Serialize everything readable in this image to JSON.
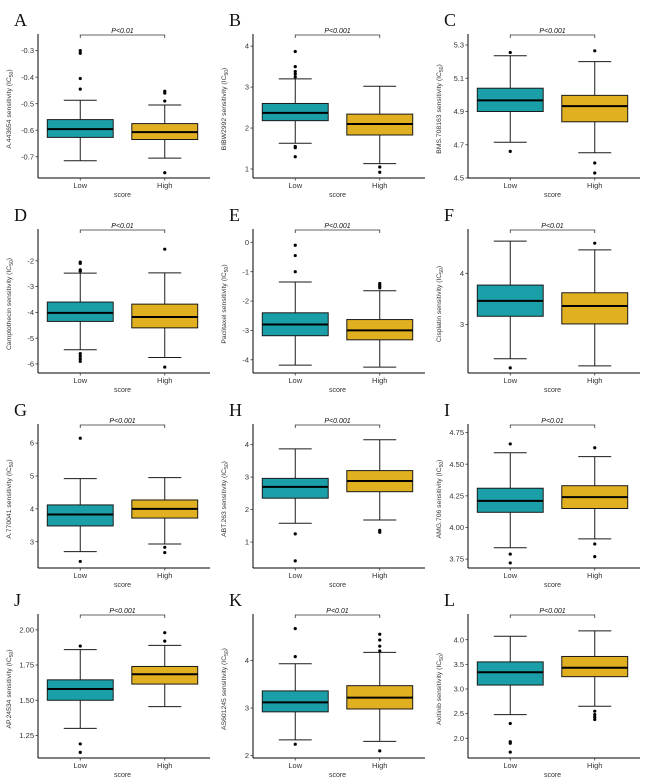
{
  "figure": {
    "group_colors": {
      "Low": "#1a9fa8",
      "High": "#e0b020"
    },
    "box_line_color": "#1a1a1a"
  },
  "chart_data": [
    {
      "type": "boxplot",
      "panel": "A",
      "title": "",
      "ylabel": "A.443654 sensitivity (IC50)",
      "ylabel_main": "A.443654 sensitivity (IC",
      "ylabel_sub": "50",
      "ylabel_end": ")",
      "xlabel": "score",
      "categories": [
        "Low",
        "High"
      ],
      "ylim": [
        -0.78,
        -0.26
      ],
      "yticks": [
        -0.7,
        -0.6,
        -0.5,
        -0.4,
        -0.3
      ],
      "ytick_labels": [
        "-0.7",
        "-0.6",
        "-0.5",
        "-0.4",
        "-0.3"
      ],
      "pvalue": "P<0.01",
      "series": [
        {
          "name": "Low",
          "whisker_low": -0.715,
          "q1": -0.627,
          "median": -0.596,
          "q3": -0.56,
          "whisker_high": -0.487,
          "outliers": [
            -0.445,
            -0.405,
            -0.31,
            -0.3
          ]
        },
        {
          "name": "High",
          "whisker_low": -0.705,
          "q1": -0.635,
          "median": -0.607,
          "q3": -0.575,
          "whisker_high": -0.505,
          "outliers": [
            -0.76,
            -0.49,
            -0.46,
            -0.453
          ]
        }
      ]
    },
    {
      "type": "boxplot",
      "panel": "B",
      "ylabel": "BIBW2992 sensitivity (IC50)",
      "ylabel_main": "BIBW2992 sensitivity (IC",
      "ylabel_sub": "50",
      "ylabel_end": ")",
      "xlabel": "score",
      "categories": [
        "Low",
        "High"
      ],
      "ylim": [
        0.78,
        4.15
      ],
      "yticks": [
        1,
        2,
        3,
        4
      ],
      "ytick_labels": [
        "1",
        "2",
        "3",
        "4"
      ],
      "pvalue": "P<0.001",
      "series": [
        {
          "name": "Low",
          "whisker_low": 1.63,
          "q1": 2.18,
          "median": 2.37,
          "q3": 2.6,
          "whisker_high": 3.2,
          "outliers": [
            1.3,
            1.52,
            1.55,
            3.25,
            3.32,
            3.38,
            3.5,
            3.87
          ]
        },
        {
          "name": "High",
          "whisker_low": 1.13,
          "q1": 1.83,
          "median": 2.1,
          "q3": 2.34,
          "whisker_high": 3.02,
          "outliers": [
            0.92,
            1.05
          ]
        }
      ]
    },
    {
      "type": "boxplot",
      "panel": "C",
      "ylabel": "BMS.708163 sensitivity (IC50)",
      "ylabel_main": "BMS.708163 sensitivity (IC",
      "ylabel_sub": "50",
      "ylabel_end": ")",
      "xlabel": "score",
      "categories": [
        "Low",
        "High"
      ],
      "ylim": [
        4.5,
        5.33
      ],
      "yticks": [
        4.5,
        4.7,
        4.9,
        5.1,
        5.3
      ],
      "ytick_labels": [
        "4.5",
        "4.7",
        "4.9",
        "5.1",
        "5.3"
      ],
      "pvalue": "P<0.001",
      "series": [
        {
          "name": "Low",
          "whisker_low": 4.715,
          "q1": 4.9,
          "median": 4.967,
          "q3": 5.04,
          "whisker_high": 5.235,
          "outliers": [
            4.66,
            5.255
          ]
        },
        {
          "name": "High",
          "whisker_low": 4.652,
          "q1": 4.838,
          "median": 4.932,
          "q3": 4.997,
          "whisker_high": 5.2,
          "outliers": [
            4.53,
            4.59,
            5.265
          ]
        }
      ]
    },
    {
      "type": "boxplot",
      "panel": "D",
      "ylabel": "Camptothecin sensitivity (IC50)",
      "ylabel_main": "Camptothecin sensitivity (IC",
      "ylabel_sub": "50",
      "ylabel_end": ")",
      "xlabel": "score",
      "categories": [
        "Low",
        "High"
      ],
      "ylim": [
        -6.35,
        -1.0
      ],
      "yticks": [
        -6,
        -5,
        -4,
        -3,
        -2
      ],
      "ytick_labels": [
        "-6",
        "-5",
        "-4",
        "-3",
        "-2"
      ],
      "pvalue": "P<0.01",
      "series": [
        {
          "name": "Low",
          "whisker_low": -5.45,
          "q1": -4.35,
          "median": -4.02,
          "q3": -3.6,
          "whisker_high": -2.48,
          "outliers": [
            -5.9,
            -5.8,
            -5.7,
            -5.6,
            -2.4,
            -2.35,
            -2.1,
            -2.05
          ]
        },
        {
          "name": "High",
          "whisker_low": -5.75,
          "q1": -4.6,
          "median": -4.18,
          "q3": -3.68,
          "whisker_high": -2.47,
          "outliers": [
            -6.12,
            -1.55
          ]
        }
      ]
    },
    {
      "type": "boxplot",
      "panel": "E",
      "ylabel": "Paclitaxel sensitivity (IC50)",
      "ylabel_main": "Paclitaxel sensitivity (IC",
      "ylabel_sub": "50",
      "ylabel_end": ")",
      "xlabel": "score",
      "categories": [
        "Low",
        "High"
      ],
      "ylim": [
        -4.45,
        0.25
      ],
      "yticks": [
        -4,
        -3,
        -2,
        -1,
        0
      ],
      "ytick_labels": [
        "-4",
        "-3",
        "-2",
        "-1",
        "0"
      ],
      "pvalue": "P<0.001",
      "series": [
        {
          "name": "Low",
          "whisker_low": -4.18,
          "q1": -3.18,
          "median": -2.8,
          "q3": -2.4,
          "whisker_high": -1.35,
          "outliers": [
            -1.0,
            -0.45,
            -0.1
          ]
        },
        {
          "name": "High",
          "whisker_low": -4.25,
          "q1": -3.32,
          "median": -3.0,
          "q3": -2.63,
          "whisker_high": -1.65,
          "outliers": [
            -1.55,
            -1.5,
            -1.45,
            -1.4
          ]
        }
      ]
    },
    {
      "type": "boxplot",
      "panel": "F",
      "ylabel": "Cisplatin sensitivity (IC50)",
      "ylabel_main": "Cisplatin sensitivity (IC",
      "ylabel_sub": "50",
      "ylabel_end": ")",
      "xlabel": "score",
      "categories": [
        "Low",
        "High"
      ],
      "ylim": [
        2.05,
        4.75
      ],
      "yticks": [
        3,
        4
      ],
      "ytick_labels": [
        "3",
        "4"
      ],
      "pvalue": "P<0.01",
      "series": [
        {
          "name": "Low",
          "whisker_low": 2.33,
          "q1": 3.16,
          "median": 3.46,
          "q3": 3.77,
          "whisker_high": 4.63,
          "outliers": [
            2.15
          ]
        },
        {
          "name": "High",
          "whisker_low": 2.19,
          "q1": 3.01,
          "median": 3.36,
          "q3": 3.62,
          "whisker_high": 4.46,
          "outliers": [
            4.59
          ]
        }
      ]
    },
    {
      "type": "boxplot",
      "panel": "G",
      "ylabel": "A.770041 sensitivity (IC50)",
      "ylabel_main": "A.770041 sensitivity (IC",
      "ylabel_sub": "50",
      "ylabel_end": ")",
      "xlabel": "score",
      "categories": [
        "Low",
        "High"
      ],
      "ylim": [
        2.2,
        6.4
      ],
      "yticks": [
        3,
        4,
        5,
        6
      ],
      "ytick_labels": [
        "3",
        "4",
        "5",
        "6"
      ],
      "pvalue": "P<0.001",
      "series": [
        {
          "name": "Low",
          "whisker_low": 2.7,
          "q1": 3.48,
          "median": 3.83,
          "q3": 4.12,
          "whisker_high": 4.92,
          "outliers": [
            2.4,
            6.15
          ]
        },
        {
          "name": "High",
          "whisker_low": 2.93,
          "q1": 3.72,
          "median": 4.0,
          "q3": 4.27,
          "whisker_high": 4.95,
          "outliers": [
            2.67,
            2.83
          ]
        }
      ]
    },
    {
      "type": "boxplot",
      "panel": "H",
      "ylabel": "ABT.263 sensitivity (IC50)",
      "ylabel_main": "ABT.263 sensitivity (IC",
      "ylabel_sub": "50",
      "ylabel_end": ")",
      "xlabel": "score",
      "categories": [
        "Low",
        "High"
      ],
      "ylim": [
        0.2,
        4.45
      ],
      "yticks": [
        1,
        2,
        3,
        4
      ],
      "ytick_labels": [
        "1",
        "2",
        "3",
        "4"
      ],
      "pvalue": "P<0.001",
      "series": [
        {
          "name": "Low",
          "whisker_low": 1.58,
          "q1": 2.35,
          "median": 2.7,
          "q3": 2.96,
          "whisker_high": 3.87,
          "outliers": [
            0.42,
            1.25
          ]
        },
        {
          "name": "High",
          "whisker_low": 1.68,
          "q1": 2.55,
          "median": 2.88,
          "q3": 3.2,
          "whisker_high": 4.15,
          "outliers": [
            1.3,
            1.36
          ]
        }
      ]
    },
    {
      "type": "boxplot",
      "panel": "I",
      "ylabel": "AMG.706 sensitivity (IC50)",
      "ylabel_main": "AMG.706 sensitivity (IC",
      "ylabel_sub": "50",
      "ylabel_end": ")",
      "xlabel": "score",
      "categories": [
        "Low",
        "High"
      ],
      "ylim": [
        3.68,
        4.77
      ],
      "yticks": [
        3.75,
        4.0,
        4.25,
        4.5,
        4.75
      ],
      "ytick_labels": [
        "3.75",
        "4.00",
        "4.25",
        "4.50",
        "4.75"
      ],
      "pvalue": "P<0.01",
      "series": [
        {
          "name": "Low",
          "whisker_low": 3.84,
          "q1": 4.12,
          "median": 4.21,
          "q3": 4.31,
          "whisker_high": 4.59,
          "outliers": [
            3.72,
            3.79,
            4.66
          ]
        },
        {
          "name": "High",
          "whisker_low": 3.91,
          "q1": 4.15,
          "median": 4.24,
          "q3": 4.33,
          "whisker_high": 4.56,
          "outliers": [
            3.77,
            3.87,
            4.63
          ]
        }
      ]
    },
    {
      "type": "boxplot",
      "panel": "J",
      "ylabel": "AP.24534 sensitivity (IC50)",
      "ylabel_main": "AP.24534 sensitivity (IC",
      "ylabel_sub": "50",
      "ylabel_end": ")",
      "xlabel": "score",
      "categories": [
        "Low",
        "High"
      ],
      "ylim": [
        1.09,
        2.07
      ],
      "yticks": [
        1.25,
        1.5,
        1.75,
        2.0
      ],
      "ytick_labels": [
        "1.25",
        "1.50",
        "1.75",
        "2.00"
      ],
      "pvalue": "P<0.001",
      "series": [
        {
          "name": "Low",
          "whisker_low": 1.3,
          "q1": 1.5,
          "median": 1.58,
          "q3": 1.645,
          "whisker_high": 1.86,
          "outliers": [
            1.13,
            1.19,
            1.885
          ]
        },
        {
          "name": "High",
          "whisker_low": 1.455,
          "q1": 1.615,
          "median": 1.685,
          "q3": 1.74,
          "whisker_high": 1.89,
          "outliers": [
            1.92,
            1.98
          ]
        }
      ]
    },
    {
      "type": "boxplot",
      "panel": "K",
      "ylabel": "AS601245 sensitivity (IC50)",
      "ylabel_main": "AS601245 sensitivity (IC",
      "ylabel_sub": "50",
      "ylabel_end": ")",
      "xlabel": "score",
      "categories": [
        "Low",
        "High"
      ],
      "ylim": [
        1.95,
        4.85
      ],
      "yticks": [
        2,
        3,
        4
      ],
      "ytick_labels": [
        "2",
        "3",
        "4"
      ],
      "pvalue": "P<0.01",
      "series": [
        {
          "name": "Low",
          "whisker_low": 2.33,
          "q1": 2.92,
          "median": 3.12,
          "q3": 3.36,
          "whisker_high": 3.93,
          "outliers": [
            2.24,
            4.08,
            4.67
          ]
        },
        {
          "name": "High",
          "whisker_low": 2.3,
          "q1": 2.98,
          "median": 3.22,
          "q3": 3.47,
          "whisker_high": 4.17,
          "outliers": [
            2.1,
            4.2,
            4.3,
            4.43,
            4.55
          ]
        }
      ]
    },
    {
      "type": "boxplot",
      "panel": "L",
      "ylabel": "Axitinib sensitivity (IC50)",
      "ylabel_main": "Axitinib sensitivity (IC",
      "ylabel_sub": "50",
      "ylabel_end": ")",
      "xlabel": "score",
      "categories": [
        "Low",
        "High"
      ],
      "ylim": [
        1.6,
        4.4
      ],
      "yticks": [
        2.0,
        2.5,
        3.0,
        3.5,
        4.0
      ],
      "ytick_labels": [
        "2.0",
        "2.5",
        "3.0",
        "3.5",
        "4.0"
      ],
      "pvalue": "P<0.001",
      "series": [
        {
          "name": "Low",
          "whisker_low": 2.48,
          "q1": 3.08,
          "median": 3.34,
          "q3": 3.55,
          "whisker_high": 4.07,
          "outliers": [
            1.72,
            1.9,
            1.93,
            2.3
          ]
        },
        {
          "name": "High",
          "whisker_low": 2.65,
          "q1": 3.25,
          "median": 3.43,
          "q3": 3.66,
          "whisker_high": 4.18,
          "outliers": [
            2.38,
            2.43,
            2.48,
            2.55
          ]
        }
      ]
    }
  ]
}
